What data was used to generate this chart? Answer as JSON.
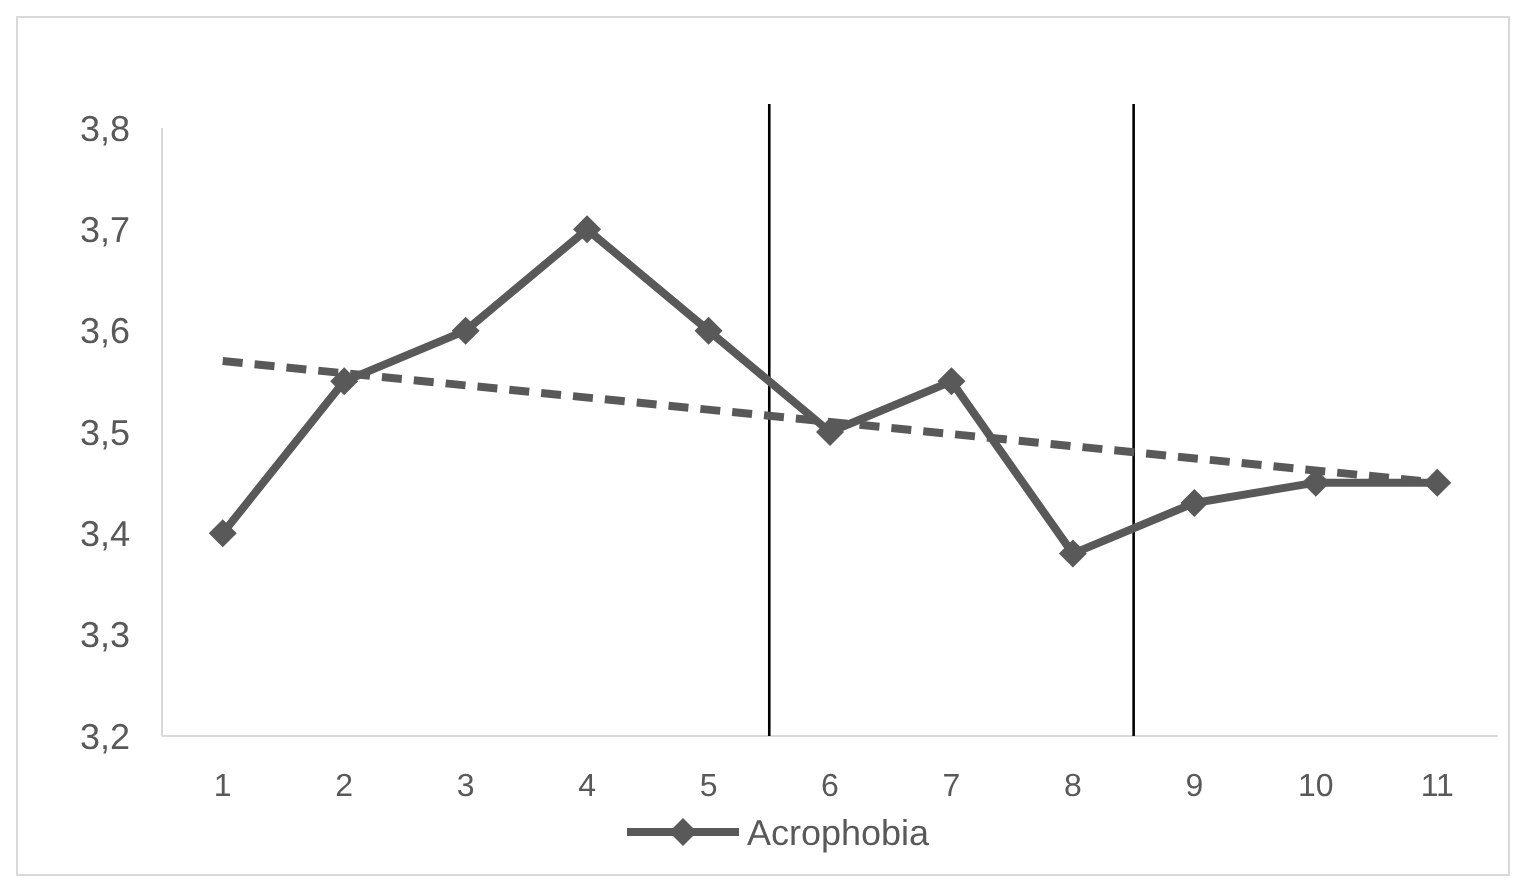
{
  "chart_data": {
    "type": "line",
    "x": [
      1,
      2,
      3,
      4,
      5,
      6,
      7,
      8,
      9,
      10,
      11
    ],
    "xlim": [
      0.5,
      11.5
    ],
    "xticks": [
      1,
      2,
      3,
      4,
      5,
      6,
      7,
      8,
      9,
      10,
      11
    ],
    "ylim": [
      3.2,
      3.8
    ],
    "yticks": [
      {
        "value": 3.2,
        "label": "3,2"
      },
      {
        "value": 3.3,
        "label": "3,3"
      },
      {
        "value": 3.4,
        "label": "3,4"
      },
      {
        "value": 3.5,
        "label": "3,5"
      },
      {
        "value": 3.6,
        "label": "3,6"
      },
      {
        "value": 3.7,
        "label": "3,7"
      },
      {
        "value": 3.8,
        "label": "3,8"
      }
    ],
    "grid": false,
    "legend": "bottom",
    "marker": "diamond",
    "line_style": "solid",
    "series": [
      {
        "name": "Acrophobia",
        "color": "#595959",
        "values": [
          3.4,
          3.55,
          3.6,
          3.7,
          3.6,
          3.5,
          3.55,
          3.38,
          3.43,
          3.45,
          3.45
        ]
      },
      {
        "type": "line",
        "color": "#595959",
        "x": [
          1,
          11
        ],
        "values": [
          3.57,
          3.45
        ],
        "marker": "none",
        "line_style": "dashed"
      }
    ],
    "ref_lines": [
      {
        "axis": "x",
        "value": 5.5,
        "color": "#000000"
      },
      {
        "axis": "x",
        "value": 8.5,
        "color": "#000000"
      }
    ]
  }
}
